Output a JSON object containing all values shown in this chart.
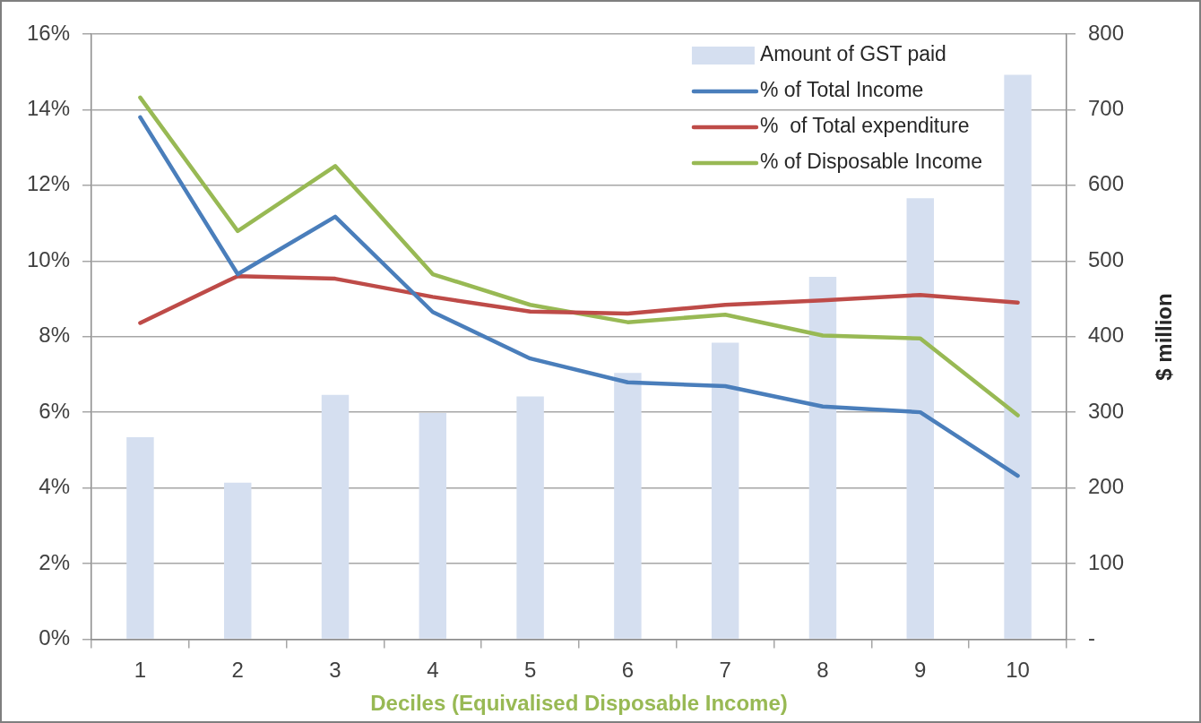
{
  "chart_data": {
    "type": "bar",
    "xlabel": "Deciles (Equivalised Disposable Income)",
    "y2label": "$ million",
    "categories": [
      "1",
      "2",
      "3",
      "4",
      "5",
      "6",
      "7",
      "8",
      "9",
      "10"
    ],
    "series": [
      {
        "name": "Amount of GST paid",
        "axis": "y2",
        "color": "#d5dff0",
        "values": [
          267,
          207,
          323,
          299,
          321,
          352,
          392,
          479,
          583,
          746
        ]
      },
      {
        "name": "% of Total Income",
        "type": "line",
        "color": "#4a7ebb",
        "values": [
          13.8,
          9.65,
          11.17,
          8.65,
          7.42,
          6.79,
          6.69,
          6.15,
          6.0,
          4.32
        ]
      },
      {
        "name": "%  of Total expenditure",
        "type": "line",
        "color": "#be4b48",
        "values": [
          8.36,
          9.6,
          9.53,
          9.05,
          8.66,
          8.61,
          8.84,
          8.96,
          9.1,
          8.9
        ]
      },
      {
        "name": "% of Disposable Income",
        "type": "line",
        "color": "#98b954",
        "values": [
          14.32,
          10.79,
          12.51,
          9.65,
          8.84,
          8.38,
          8.58,
          8.03,
          7.95,
          5.92
        ]
      }
    ],
    "ylim": [
      0,
      16
    ],
    "yticks": [
      {
        "value": 0,
        "label": "0%"
      },
      {
        "value": 2,
        "label": "2%"
      },
      {
        "value": 4,
        "label": "4%"
      },
      {
        "value": 6,
        "label": "6%"
      },
      {
        "value": 8,
        "label": "8%"
      },
      {
        "value": 10,
        "label": "10%"
      },
      {
        "value": 12,
        "label": "12%"
      },
      {
        "value": 14,
        "label": "14%"
      },
      {
        "value": 16,
        "label": "16%"
      }
    ],
    "y2lim": [
      0,
      800
    ],
    "y2ticks": [
      {
        "value": 0,
        "label": "-"
      },
      100,
      200,
      300,
      400,
      500,
      600,
      700,
      800
    ],
    "grid": "y",
    "legend": "top right",
    "marker": "none",
    "line_style": "solid"
  }
}
